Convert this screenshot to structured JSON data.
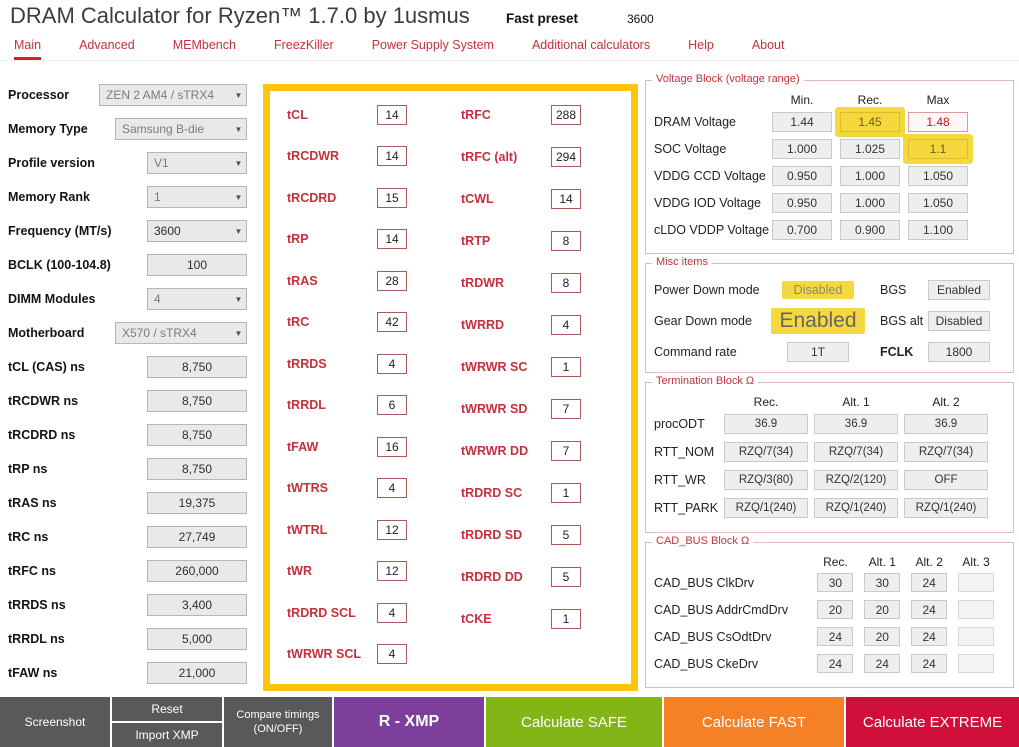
{
  "header": {
    "title": "DRAM Calculator for Ryzen™ 1.7.0 by 1usmus",
    "preset_label": "Fast preset",
    "preset_value": "3600"
  },
  "nav": {
    "active": "Main",
    "items": [
      {
        "label": "Main"
      },
      {
        "label": "Advanced"
      },
      {
        "label": "MEMbench"
      },
      {
        "label": "FreezKiller"
      },
      {
        "label": "Power Supply System"
      },
      {
        "label": "Additional calculators"
      },
      {
        "label": "Help"
      },
      {
        "label": "About"
      }
    ]
  },
  "left_panel": {
    "selects": [
      {
        "label": "Processor",
        "value": "ZEN 2 AM4 / sTRX4"
      },
      {
        "label": "Memory Type",
        "value": "Samsung B-die"
      },
      {
        "label": "Profile version",
        "value": "V1"
      },
      {
        "label": "Memory Rank",
        "value": "1"
      },
      {
        "label": "Frequency (MT/s)",
        "value": "3600"
      },
      {
        "label": "BCLK (100-104.8)",
        "value": "100"
      },
      {
        "label": "DIMM Modules",
        "value": "4"
      },
      {
        "label": "Motherboard",
        "value": "X570 / sTRX4"
      }
    ],
    "ns_fields": [
      {
        "label": "tCL (CAS) ns",
        "value": "8,750"
      },
      {
        "label": "tRCDWR ns",
        "value": "8,750"
      },
      {
        "label": "tRCDRD ns",
        "value": "8,750"
      },
      {
        "label": "tRP ns",
        "value": "8,750"
      },
      {
        "label": "tRAS ns",
        "value": "19,375"
      },
      {
        "label": "tRC ns",
        "value": "27,749"
      },
      {
        "label": "tRFC ns",
        "value": "260,000"
      },
      {
        "label": "tRRDS ns",
        "value": "3,400"
      },
      {
        "label": "tRRDL ns",
        "value": "5,000"
      },
      {
        "label": "tFAW ns",
        "value": "21,000"
      }
    ]
  },
  "timings": {
    "col1": [
      {
        "label": "tCL",
        "value": "14"
      },
      {
        "label": "tRCDWR",
        "value": "14"
      },
      {
        "label": "tRCDRD",
        "value": "15"
      },
      {
        "label": "tRP",
        "value": "14"
      },
      {
        "label": "tRAS",
        "value": "28"
      },
      {
        "label": "tRC",
        "value": "42"
      },
      {
        "label": "tRRDS",
        "value": "4"
      },
      {
        "label": "tRRDL",
        "value": "6"
      },
      {
        "label": "tFAW",
        "value": "16"
      },
      {
        "label": "tWTRS",
        "value": "4"
      },
      {
        "label": "tWTRL",
        "value": "12"
      },
      {
        "label": "tWR",
        "value": "12"
      },
      {
        "label": "tRDRD SCL",
        "value": "4"
      },
      {
        "label": "tWRWR SCL",
        "value": "4"
      }
    ],
    "col2": [
      {
        "label": "tRFC",
        "value": "288"
      },
      {
        "label": "tRFC (alt)",
        "value": "294"
      },
      {
        "label": "tCWL",
        "value": "14"
      },
      {
        "label": "tRTP",
        "value": "8"
      },
      {
        "label": "tRDWR",
        "value": "8"
      },
      {
        "label": "tWRRD",
        "value": "4"
      },
      {
        "label": "tWRWR SC",
        "value": "1"
      },
      {
        "label": "tWRWR SD",
        "value": "7"
      },
      {
        "label": "tWRWR DD",
        "value": "7"
      },
      {
        "label": "tRDRD SC",
        "value": "1"
      },
      {
        "label": "tRDRD SD",
        "value": "5"
      },
      {
        "label": "tRDRD DD",
        "value": "5"
      },
      {
        "label": "tCKE",
        "value": "1"
      }
    ]
  },
  "voltage_block": {
    "title": "Voltage Block (voltage range)",
    "columns": [
      "Min.",
      "Rec.",
      "Max"
    ],
    "rows": [
      {
        "label": "DRAM Voltage",
        "min": "1.44",
        "rec": "1.45",
        "max": "1.48"
      },
      {
        "label": "SOC Voltage",
        "min": "1.000",
        "rec": "1.025",
        "max": "1.1"
      },
      {
        "label": "VDDG CCD Voltage",
        "min": "0.950",
        "rec": "1.000",
        "max": "1.050"
      },
      {
        "label": "VDDG IOD Voltage",
        "min": "0.950",
        "rec": "1.000",
        "max": "1.050"
      },
      {
        "label": "cLDO VDDP Voltage",
        "min": "0.700",
        "rec": "0.900",
        "max": "1.100"
      }
    ]
  },
  "misc_items": {
    "title": "Misc items",
    "power_down_label": "Power Down mode",
    "power_down_value": "Disabled",
    "bgs_label": "BGS",
    "bgs_value": "Enabled",
    "gear_down_label": "Gear Down mode",
    "gear_down_value": "Enabled",
    "bgs_alt_label": "BGS alt",
    "bgs_alt_value": "Disabled",
    "command_rate_label": "Command rate",
    "command_rate_value": "1T",
    "fclk_label": "FCLK",
    "fclk_value": "1800"
  },
  "termination_block": {
    "title": "Termination Block Ω",
    "columns": [
      "Rec.",
      "Alt. 1",
      "Alt. 2"
    ],
    "rows": [
      {
        "label": "procODT",
        "values": [
          "36.9",
          "36.9",
          "36.9"
        ]
      },
      {
        "label": "RTT_NOM",
        "values": [
          "RZQ/7(34)",
          "RZQ/7(34)",
          "RZQ/7(34)"
        ]
      },
      {
        "label": "RTT_WR",
        "values": [
          "RZQ/3(80)",
          "RZQ/2(120)",
          "OFF"
        ]
      },
      {
        "label": "RTT_PARK",
        "values": [
          "RZQ/1(240)",
          "RZQ/1(240)",
          "RZQ/1(240)"
        ]
      }
    ]
  },
  "cad_bus_block": {
    "title": "CAD_BUS Block Ω",
    "columns": [
      "Rec.",
      "Alt. 1",
      "Alt. 2",
      "Alt. 3"
    ],
    "rows": [
      {
        "label": "CAD_BUS ClkDrv",
        "values": [
          "30",
          "30",
          "24",
          ""
        ]
      },
      {
        "label": "CAD_BUS AddrCmdDrv",
        "values": [
          "20",
          "20",
          "24",
          ""
        ]
      },
      {
        "label": "CAD_BUS CsOdtDrv",
        "values": [
          "24",
          "20",
          "24",
          ""
        ]
      },
      {
        "label": "CAD_BUS CkeDrv",
        "values": [
          "24",
          "24",
          "24",
          ""
        ]
      }
    ]
  },
  "footer": {
    "screenshot_label": "Screenshot",
    "reset_label": "Reset",
    "import_xmp_label": "Import XMP",
    "compare_line1": "Compare timings",
    "compare_line2": "(ON/OFF)",
    "rxmp_label": "R - XMP",
    "safe_label": "Calculate SAFE",
    "fast_label": "Calculate FAST",
    "extreme_label": "Calculate EXTREME"
  },
  "icons": {
    "chevron_down": "▼"
  },
  "colors": {
    "accent_red": "#c4313c",
    "highlight_yellow": "#f5d73e",
    "timings_border_yellow": "#ffc40c",
    "danger_red": "#cc1111",
    "button_gray": "#58595b",
    "button_purple": "#7c3f9c",
    "button_green": "#84b517",
    "button_orange": "#f58025",
    "button_crimson": "#d0103a"
  }
}
